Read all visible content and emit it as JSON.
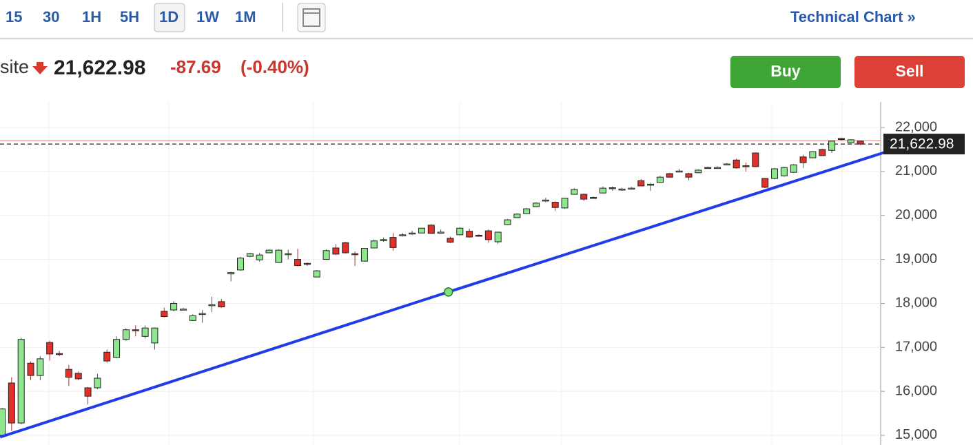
{
  "toolbar": {
    "timeframes": [
      "15",
      "30",
      "1H",
      "5H",
      "1D",
      "1W",
      "1M"
    ],
    "selected_timeframe_index": 4,
    "link": "Technical Chart »"
  },
  "quote": {
    "name": "site",
    "price": "21,622.98",
    "change": "-87.69",
    "change_percent": "(-0.40%)"
  },
  "buttons": {
    "buy": "Buy",
    "sell": "Sell"
  },
  "chart_data": {
    "type": "candlestick",
    "up_color": "#8ee68e",
    "down_color": "#e0302a",
    "open": [
      15000,
      16190,
      15280,
      16640,
      16360,
      17110,
      16860,
      16500,
      16410,
      16080,
      16080,
      16890,
      16770,
      17180,
      17400,
      17250,
      17100,
      17820,
      17850,
      17860,
      17610,
      17750,
      17960,
      18040,
      18670,
      18760,
      19070,
      18990,
      19150,
      18930,
      19120,
      19000,
      18910,
      18600,
      19000,
      19260,
      19380,
      19130,
      18960,
      19260,
      19440,
      19500,
      19550,
      19590,
      19600,
      19780,
      19610,
      19480,
      19560,
      19640,
      19550,
      19650,
      19400,
      19790,
      19950,
      20040,
      20200,
      20340,
      20300,
      20170,
      20480,
      20480,
      20410,
      20510,
      20630,
      20590,
      20610,
      20790,
      20700,
      20750,
      20950,
      21000,
      20950,
      20970,
      21090,
      21080,
      21160,
      21260,
      21130,
      21420,
      20840,
      20840,
      20900,
      20980,
      21330,
      21310,
      21500,
      21480,
      21750,
      21650,
      21690
    ],
    "high": [
      15620,
      16320,
      17220,
      16680,
      16800,
      17150,
      16920,
      16600,
      16450,
      16100,
      16400,
      16950,
      17250,
      17430,
      17500,
      17500,
      17450,
      17900,
      18050,
      17900,
      17750,
      17850,
      18150,
      18100,
      18720,
      19060,
      19150,
      19150,
      19230,
      19230,
      19220,
      19240,
      18930,
      18760,
      19230,
      19350,
      19400,
      19180,
      19260,
      19450,
      19500,
      19600,
      19600,
      19650,
      19720,
      19800,
      19680,
      19520,
      19730,
      19700,
      19570,
      19680,
      19630,
      19920,
      20050,
      20170,
      20300,
      20400,
      20320,
      20400,
      20620,
      20500,
      20430,
      20660,
      20660,
      20630,
      20650,
      20830,
      20740,
      20900,
      20970,
      21060,
      20970,
      21050,
      21110,
      21120,
      21190,
      21290,
      21200,
      21430,
      20850,
      21080,
      21110,
      21170,
      21380,
      21460,
      21520,
      21700,
      21770,
      21730,
      21700
    ],
    "low": [
      14950,
      15100,
      15250,
      16250,
      16250,
      16700,
      16800,
      16120,
      16250,
      15700,
      16050,
      16650,
      16750,
      17150,
      17250,
      17200,
      16950,
      17680,
      17820,
      17850,
      17600,
      17560,
      17800,
      17900,
      18500,
      18740,
      19050,
      18950,
      19140,
      18920,
      19000,
      18840,
      18850,
      18600,
      18990,
      19100,
      19130,
      18850,
      18950,
      19250,
      19400,
      19200,
      19520,
      19560,
      19590,
      19580,
      19600,
      19370,
      19550,
      19490,
      19520,
      19380,
      19350,
      19780,
      19940,
      20030,
      20190,
      20300,
      20100,
      20150,
      20470,
      20330,
      20380,
      20500,
      20560,
      20560,
      20600,
      20660,
      20560,
      20740,
      20860,
      20980,
      20800,
      20960,
      21060,
      21070,
      21150,
      21060,
      21000,
      21100,
      20620,
      20820,
      20880,
      20970,
      21080,
      21300,
      21350,
      21420,
      21700,
      21640,
      21600
    ],
    "close": [
      15600,
      15280,
      17180,
      16360,
      16740,
      16850,
      16850,
      16320,
      16285,
      15890,
      16300,
      16690,
      17180,
      17400,
      17380,
      17440,
      17440,
      17700,
      18000,
      17870,
      17720,
      17770,
      17970,
      17920,
      18700,
      19030,
      19130,
      19100,
      19210,
      19210,
      19130,
      18860,
      18900,
      18740,
      19200,
      19120,
      19150,
      19120,
      19250,
      19420,
      19450,
      19270,
      19560,
      19600,
      19710,
      19590,
      19620,
      19390,
      19710,
      19510,
      19540,
      19450,
      19620,
      19900,
      20030,
      20150,
      20280,
      20350,
      20180,
      20390,
      20590,
      20370,
      20400,
      20620,
      20620,
      20600,
      20620,
      20670,
      20710,
      20870,
      20870,
      21010,
      20870,
      21030,
      21080,
      21090,
      21170,
      21080,
      21120,
      21110,
      20640,
      21060,
      21090,
      21150,
      21200,
      21450,
      21360,
      21690,
      21740,
      21720,
      21622.98
    ],
    "ylim": [
      14780,
      22580
    ],
    "yticks": [
      {
        "value": 15000,
        "label": "15,000"
      },
      {
        "value": 16000,
        "label": "16,000"
      },
      {
        "value": 17000,
        "label": "17,000"
      },
      {
        "value": 18000,
        "label": "18,000"
      },
      {
        "value": 19000,
        "label": "19,000"
      },
      {
        "value": 20000,
        "label": "20,000"
      },
      {
        "value": 21000,
        "label": "21,000"
      },
      {
        "value": 22000,
        "label": "22,000"
      }
    ],
    "last_price": {
      "value": 21622.98,
      "label": "21,622.98"
    },
    "reference_line": {
      "value": 21700,
      "color": "#f08080"
    },
    "trendline": {
      "color": "#1f3de6",
      "x": [
        -0.2,
        46.8,
        96.8
      ],
      "values": [
        14960,
        18260,
        21730
      ]
    },
    "grid": true
  }
}
